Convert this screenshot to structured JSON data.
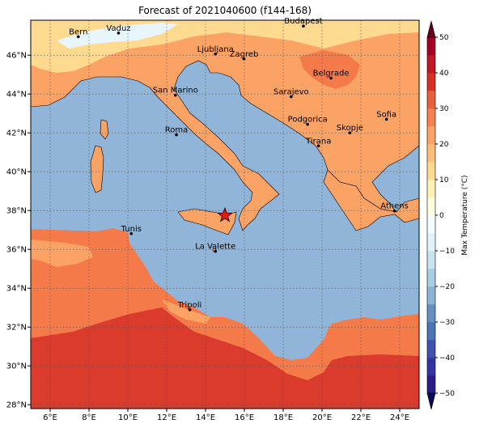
{
  "title": "Forecast of 2021040600 (f144-168)",
  "map": {
    "lon_range": [
      5,
      25
    ],
    "lat_range": [
      27.8,
      47.8
    ],
    "x_ticks": [
      {
        "value": 6,
        "label": "6°E"
      },
      {
        "value": 8,
        "label": "8°E"
      },
      {
        "value": 10,
        "label": "10°E"
      },
      {
        "value": 12,
        "label": "12°E"
      },
      {
        "value": 14,
        "label": "14°E"
      },
      {
        "value": 16,
        "label": "16°E"
      },
      {
        "value": 18,
        "label": "18°E"
      },
      {
        "value": 20,
        "label": "20°E"
      },
      {
        "value": 22,
        "label": "22°E"
      },
      {
        "value": 24,
        "label": "24°E"
      }
    ],
    "y_ticks": [
      {
        "value": 28,
        "label": "28°N"
      },
      {
        "value": 30,
        "label": "30°N"
      },
      {
        "value": 32,
        "label": "32°N"
      },
      {
        "value": 34,
        "label": "34°N"
      },
      {
        "value": 36,
        "label": "36°N"
      },
      {
        "value": 38,
        "label": "38°N"
      },
      {
        "value": 40,
        "label": "40°N"
      },
      {
        "value": 42,
        "label": "42°N"
      },
      {
        "value": 44,
        "label": "44°N"
      },
      {
        "value": 46,
        "label": "46°N"
      }
    ],
    "gridlines": true,
    "marker": {
      "name": "star",
      "lon": 15.0,
      "lat": 37.75,
      "color": "#e41a1c"
    },
    "cities": [
      {
        "name": "Bern",
        "lon": 7.45,
        "lat": 46.95
      },
      {
        "name": "Vaduz",
        "lon": 9.52,
        "lat": 47.14
      },
      {
        "name": "Budapest",
        "lon": 19.04,
        "lat": 47.5
      },
      {
        "name": "Ljubljana",
        "lon": 14.51,
        "lat": 46.06
      },
      {
        "name": "Zagreb",
        "lon": 15.98,
        "lat": 45.81
      },
      {
        "name": "San Marino",
        "lon": 12.45,
        "lat": 43.94
      },
      {
        "name": "Belgrade",
        "lon": 20.46,
        "lat": 44.82
      },
      {
        "name": "Sarajevo",
        "lon": 18.41,
        "lat": 43.86
      },
      {
        "name": "Roma",
        "lon": 12.5,
        "lat": 41.9
      },
      {
        "name": "Podgorica",
        "lon": 19.26,
        "lat": 42.44
      },
      {
        "name": "Sofia",
        "lon": 23.32,
        "lat": 42.7
      },
      {
        "name": "Skopje",
        "lon": 21.43,
        "lat": 42.0
      },
      {
        "name": "Tirana",
        "lon": 19.82,
        "lat": 41.33
      },
      {
        "name": "Athens",
        "lon": 23.73,
        "lat": 37.98
      },
      {
        "name": "Tunis",
        "lon": 10.18,
        "lat": 36.81
      },
      {
        "name": "La Valette",
        "lon": 14.51,
        "lat": 35.9
      },
      {
        "name": "Tripoli",
        "lon": 13.19,
        "lat": 32.89
      }
    ]
  },
  "colorbar": {
    "label": "Max Temperature (°C)",
    "levels": [
      -50,
      -45,
      -40,
      -35,
      -30,
      -25,
      -20,
      -15,
      -10,
      -5,
      0,
      5,
      10,
      15,
      20,
      25,
      30,
      35,
      40,
      45,
      50
    ],
    "tick_labels": [
      "−50",
      "−40",
      "−30",
      "−20",
      "−10",
      "0",
      "10",
      "20",
      "30",
      "40",
      "50"
    ],
    "colors": [
      "#2a1d89",
      "#3333a3",
      "#4050b0",
      "#4a74b4",
      "#6590c0",
      "#8ab3d4",
      "#a9cde2",
      "#c8e3ef",
      "#e0f2f8",
      "#f2fbfd",
      "#ffffe0",
      "#fff1b6",
      "#fed990",
      "#fdbd7a",
      "#fba265",
      "#f48150",
      "#e85f3d",
      "#d73027",
      "#bf1827",
      "#a50026"
    ],
    "extend_low_color": "#0a0a5a",
    "extend_high_color": "#67001f"
  },
  "colors": {
    "sea": "#91b5d8",
    "land_20_25": "#fba265",
    "land_15_20": "#fdbd7a",
    "land_25_30": "#f47a4a",
    "land_30_35": "#db3b2c",
    "land_10_15": "#fed990",
    "land_5_10": "#fff6c0",
    "land_0_5": "#e8f6fb",
    "coast": "#000000"
  }
}
